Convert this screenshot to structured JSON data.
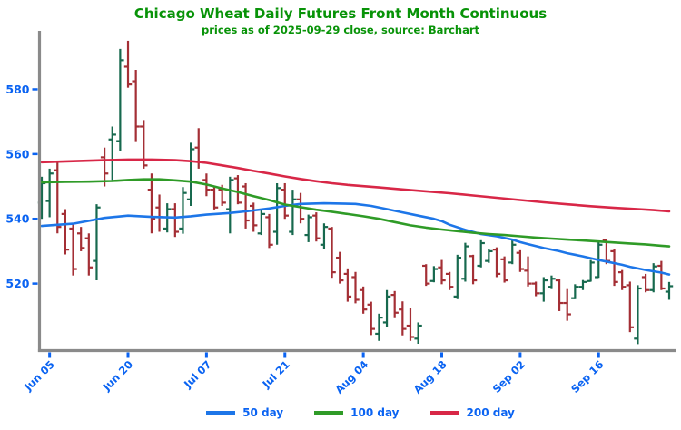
{
  "header": {
    "title": "Chicago Wheat Daily Futures Front Month Continuous",
    "subtitle": "prices as of 2025-09-29 close, source: Barchart"
  },
  "colors": {
    "title_green": "#089308",
    "axis_blue": "#0a63f2",
    "spine_gray": "#8a8a8a",
    "bar_up_green": "#17694e",
    "bar_down_red": "#a42f35",
    "ma50_blue": "#1d76e8",
    "ma100_green": "#2f9b27",
    "ma200_red": "#d82747"
  },
  "legend": {
    "items": [
      {
        "label": "50 day",
        "color_key": "ma50_blue"
      },
      {
        "label": "100 day",
        "color_key": "ma100_green"
      },
      {
        "label": "200 day",
        "color_key": "ma200_red"
      }
    ]
  },
  "chart_data": {
    "type": "ohlc-bar",
    "title": "Chicago Wheat Daily Futures Front Month Continuous",
    "subtitle": "prices as of 2025-09-29 close, source: Barchart",
    "grid": false,
    "legend_position": "bottom-center",
    "y_axis": {
      "ticks": [
        520,
        540,
        560,
        580
      ],
      "range": [
        500,
        597.5
      ]
    },
    "x_axis": {
      "tick_indices": [
        1,
        11,
        21,
        31,
        41,
        51,
        61,
        71
      ],
      "tick_labels": [
        "Jun 05",
        "Jun 20",
        "Jul 07",
        "Jul 21",
        "Aug 04",
        "Aug 18",
        "Sep 02",
        "Sep 16"
      ]
    },
    "bars_format": [
      "date",
      "open",
      "high",
      "low",
      "close"
    ],
    "bars": [
      [
        "Jun 04",
        545,
        553,
        540,
        551
      ],
      [
        "Jun 05",
        545.5,
        555.5,
        540.5,
        554
      ],
      [
        "Jun 06",
        555,
        557.5,
        535.5,
        537.5
      ],
      [
        "Jun 09",
        541.5,
        543,
        529,
        530.5
      ],
      [
        "Jun 10",
        537,
        538.5,
        522.5,
        524.5
      ],
      [
        "Jun 11",
        535.5,
        537.5,
        530,
        531
      ],
      [
        "Jun 12",
        534,
        535.5,
        522.5,
        525
      ],
      [
        "Jun 13",
        527,
        544.5,
        521,
        543.5
      ],
      [
        "Jun 16",
        559,
        562,
        550,
        554
      ],
      [
        "Jun 17",
        564.5,
        568.5,
        552,
        566
      ],
      [
        "Jun 18",
        564,
        592.5,
        561,
        589
      ],
      [
        "Jun 20",
        587,
        595,
        580.5,
        581.5
      ],
      [
        "Jun 23",
        582.5,
        586,
        564,
        568.5
      ],
      [
        "Jun 24",
        568.5,
        570.5,
        555.5,
        556.5
      ],
      [
        "Jun 25",
        549,
        554,
        535.5,
        540
      ],
      [
        "Jun 26",
        543.5,
        547.5,
        536,
        540.5
      ],
      [
        "Jun 27",
        537,
        544.8,
        535.8,
        543
      ],
      [
        "Jun 30",
        543,
        544.8,
        534.4,
        536
      ],
      [
        "Jul 01",
        537,
        549.8,
        535.4,
        548
      ],
      [
        "Jul 02",
        546,
        563.5,
        544,
        561.5
      ],
      [
        "Jul 03",
        562,
        568,
        555.5,
        557.5
      ],
      [
        "Jul 07",
        552,
        554,
        547,
        549
      ],
      [
        "Jul 08",
        549,
        549.8,
        542.9,
        543.5
      ],
      [
        "Jul 09",
        549,
        550.5,
        544,
        545
      ],
      [
        "Jul 10",
        543,
        553,
        535.5,
        552
      ],
      [
        "Jul 11",
        552.5,
        553.5,
        544.5,
        545
      ],
      [
        "Jul 14",
        550,
        551,
        537,
        539.5
      ],
      [
        "Jul 15",
        544,
        545,
        536,
        538
      ],
      [
        "Jul 16",
        535.5,
        543,
        535,
        541.5
      ],
      [
        "Jul 17",
        540.5,
        541.5,
        531,
        532
      ],
      [
        "Jul 18",
        536,
        551,
        532,
        549.5
      ],
      [
        "Jul 21",
        549,
        551,
        540,
        541
      ],
      [
        "Jul 22",
        536,
        549,
        535,
        546
      ],
      [
        "Jul 23",
        546,
        548,
        538.6,
        540
      ],
      [
        "Jul 24",
        535,
        541.3,
        532.8,
        540.5
      ],
      [
        "Jul 25",
        541,
        542,
        533,
        534
      ],
      [
        "Jul 28",
        532,
        538.6,
        530.6,
        537.5
      ],
      [
        "Jul 29",
        537,
        537.5,
        521.8,
        523.5
      ],
      [
        "Jul 30",
        528,
        529.8,
        520,
        521
      ],
      [
        "Jul 31",
        523,
        524.7,
        514.4,
        516
      ],
      [
        "Aug 01",
        522,
        523.6,
        513.9,
        515
      ],
      [
        "Aug 04",
        518,
        519.1,
        510.7,
        512
      ],
      [
        "Aug 05",
        513.5,
        514.4,
        504.1,
        506
      ],
      [
        "Aug 06",
        504.5,
        510.7,
        502.3,
        509.5
      ],
      [
        "Aug 07",
        508,
        518,
        506.6,
        516
      ],
      [
        "Aug 08",
        516.5,
        517.7,
        509.6,
        511
      ],
      [
        "Aug 11",
        512,
        514.5,
        504,
        506
      ],
      [
        "Aug 12",
        507,
        512.4,
        502.3,
        503.5
      ],
      [
        "Aug 13",
        503,
        508,
        501.4,
        507
      ],
      [
        "Aug 14",
        525.5,
        526,
        519.3,
        520
      ],
      [
        "Aug 15",
        520.8,
        525.4,
        520.4,
        524.5
      ],
      [
        "Aug 18",
        525,
        527.3,
        519.8,
        521
      ],
      [
        "Aug 19",
        523,
        523.6,
        518,
        519
      ],
      [
        "Aug 20",
        516,
        528.9,
        515.2,
        528
      ],
      [
        "Aug 21",
        521.5,
        532.6,
        520.6,
        531.5
      ],
      [
        "Aug 22",
        528.5,
        528.9,
        519.8,
        521
      ],
      [
        "Aug 25",
        525.5,
        533.4,
        525,
        532.5
      ],
      [
        "Aug 26",
        527,
        530.6,
        526.4,
        530
      ],
      [
        "Aug 27",
        530.5,
        531.2,
        522,
        523
      ],
      [
        "Aug 28",
        527.5,
        528.4,
        520.3,
        521
      ],
      [
        "Aug 29",
        526.5,
        533.4,
        526,
        532
      ],
      [
        "Sep 02",
        529.5,
        530.3,
        523.6,
        524.5
      ],
      [
        "Sep 03",
        524,
        528.4,
        519.1,
        520
      ],
      [
        "Sep 04",
        520,
        520.6,
        516.1,
        517
      ],
      [
        "Sep 05",
        517,
        522,
        514.4,
        521
      ],
      [
        "Sep 08",
        519,
        522.5,
        518.3,
        521.5
      ],
      [
        "Sep 09",
        521,
        521.5,
        511.5,
        514
      ],
      [
        "Sep 10",
        514,
        518.3,
        508.5,
        510.5
      ],
      [
        "Sep 11",
        515.5,
        519.8,
        515.2,
        519
      ],
      [
        "Sep 12",
        519,
        521.1,
        518,
        520.5
      ],
      [
        "Sep 15",
        520.8,
        527.3,
        520.6,
        526.5
      ],
      [
        "Sep 16",
        522,
        532.8,
        521.8,
        532
      ],
      [
        "Sep 17",
        533.5,
        533.7,
        526,
        527
      ],
      [
        "Sep 18",
        530,
        530.6,
        519.3,
        520.5
      ],
      [
        "Sep 19",
        523.5,
        524.2,
        518,
        519
      ],
      [
        "Sep 22",
        519.5,
        520.6,
        505,
        506.5
      ],
      [
        "Sep 23",
        503,
        519.5,
        501.3,
        518.5
      ],
      [
        "Sep 24",
        522,
        523,
        517.3,
        518
      ],
      [
        "Sep 25",
        518,
        526.3,
        517.3,
        525.3
      ],
      [
        "Sep 26",
        525.5,
        527,
        518,
        518.5
      ],
      [
        "Sep 29",
        517.5,
        520.5,
        515,
        519.2
      ]
    ],
    "series": [
      {
        "name": "50 day",
        "color_key": "ma50_blue",
        "keypoints": [
          [
            0,
            537.8
          ],
          [
            4,
            538.5
          ],
          [
            8,
            540.3
          ],
          [
            11,
            541.0
          ],
          [
            14,
            540.6
          ],
          [
            17,
            540.4
          ],
          [
            19,
            540.8
          ],
          [
            21,
            541.3
          ],
          [
            24,
            541.8
          ],
          [
            26,
            542.3
          ],
          [
            29,
            543.2
          ],
          [
            31,
            544.0
          ],
          [
            33,
            544.6
          ],
          [
            36,
            544.8
          ],
          [
            40,
            544.6
          ],
          [
            42,
            544.0
          ],
          [
            44,
            543.0
          ],
          [
            46,
            542.0
          ],
          [
            48,
            541.0
          ],
          [
            50,
            540.0
          ],
          [
            51,
            539.3
          ],
          [
            52,
            538.2
          ],
          [
            54,
            536.6
          ],
          [
            56,
            535.3
          ],
          [
            58,
            534.6
          ],
          [
            60,
            533.6
          ],
          [
            61,
            532.8
          ],
          [
            62,
            532.2
          ],
          [
            64,
            531.0
          ],
          [
            66,
            530.0
          ],
          [
            67,
            529.4
          ],
          [
            69,
            528.4
          ],
          [
            71,
            527.3
          ],
          [
            72,
            526.8
          ],
          [
            74,
            525.8
          ],
          [
            75,
            525.2
          ],
          [
            77,
            524.2
          ],
          [
            79,
            523.4
          ],
          [
            80,
            522.8
          ]
        ]
      },
      {
        "name": "100 day",
        "color_key": "ma100_green",
        "keypoints": [
          [
            0,
            551.3
          ],
          [
            3,
            551.4
          ],
          [
            6,
            551.5
          ],
          [
            9,
            551.7
          ],
          [
            11,
            552.0
          ],
          [
            13,
            552.2
          ],
          [
            15,
            552.2
          ],
          [
            17,
            551.9
          ],
          [
            19,
            551.5
          ],
          [
            21,
            550.6
          ],
          [
            23,
            549.4
          ],
          [
            25,
            548.3
          ],
          [
            27,
            547.0
          ],
          [
            29,
            545.8
          ],
          [
            31,
            544.4
          ],
          [
            33,
            543.6
          ],
          [
            35,
            542.8
          ],
          [
            37,
            542.2
          ],
          [
            39,
            541.5
          ],
          [
            41,
            540.8
          ],
          [
            43,
            540.0
          ],
          [
            45,
            539.0
          ],
          [
            47,
            538.0
          ],
          [
            49,
            537.3
          ],
          [
            51,
            536.7
          ],
          [
            53,
            536.2
          ],
          [
            55,
            535.7
          ],
          [
            57,
            535.3
          ],
          [
            59,
            535.0
          ],
          [
            61,
            534.6
          ],
          [
            63,
            534.2
          ],
          [
            65,
            533.9
          ],
          [
            67,
            533.6
          ],
          [
            69,
            533.3
          ],
          [
            71,
            533.0
          ],
          [
            73,
            532.7
          ],
          [
            75,
            532.4
          ],
          [
            77,
            532.1
          ],
          [
            79,
            531.7
          ],
          [
            80,
            531.5
          ]
        ]
      },
      {
        "name": "200 day",
        "color_key": "ma200_red",
        "keypoints": [
          [
            0,
            557.5
          ],
          [
            4,
            557.8
          ],
          [
            8,
            558.1
          ],
          [
            11,
            558.3
          ],
          [
            14,
            558.3
          ],
          [
            17,
            558.1
          ],
          [
            19,
            557.8
          ],
          [
            21,
            557.3
          ],
          [
            23,
            556.5
          ],
          [
            25,
            555.7
          ],
          [
            27,
            554.8
          ],
          [
            29,
            554.0
          ],
          [
            31,
            553.1
          ],
          [
            33,
            552.3
          ],
          [
            35,
            551.6
          ],
          [
            37,
            551.0
          ],
          [
            39,
            550.5
          ],
          [
            41,
            550.1
          ],
          [
            43,
            549.7
          ],
          [
            46,
            549.1
          ],
          [
            49,
            548.5
          ],
          [
            52,
            547.9
          ],
          [
            55,
            547.2
          ],
          [
            58,
            546.5
          ],
          [
            61,
            545.8
          ],
          [
            64,
            545.1
          ],
          [
            67,
            544.5
          ],
          [
            70,
            543.9
          ],
          [
            73,
            543.4
          ],
          [
            76,
            543.0
          ],
          [
            78,
            542.7
          ],
          [
            80,
            542.3
          ]
        ]
      }
    ]
  }
}
